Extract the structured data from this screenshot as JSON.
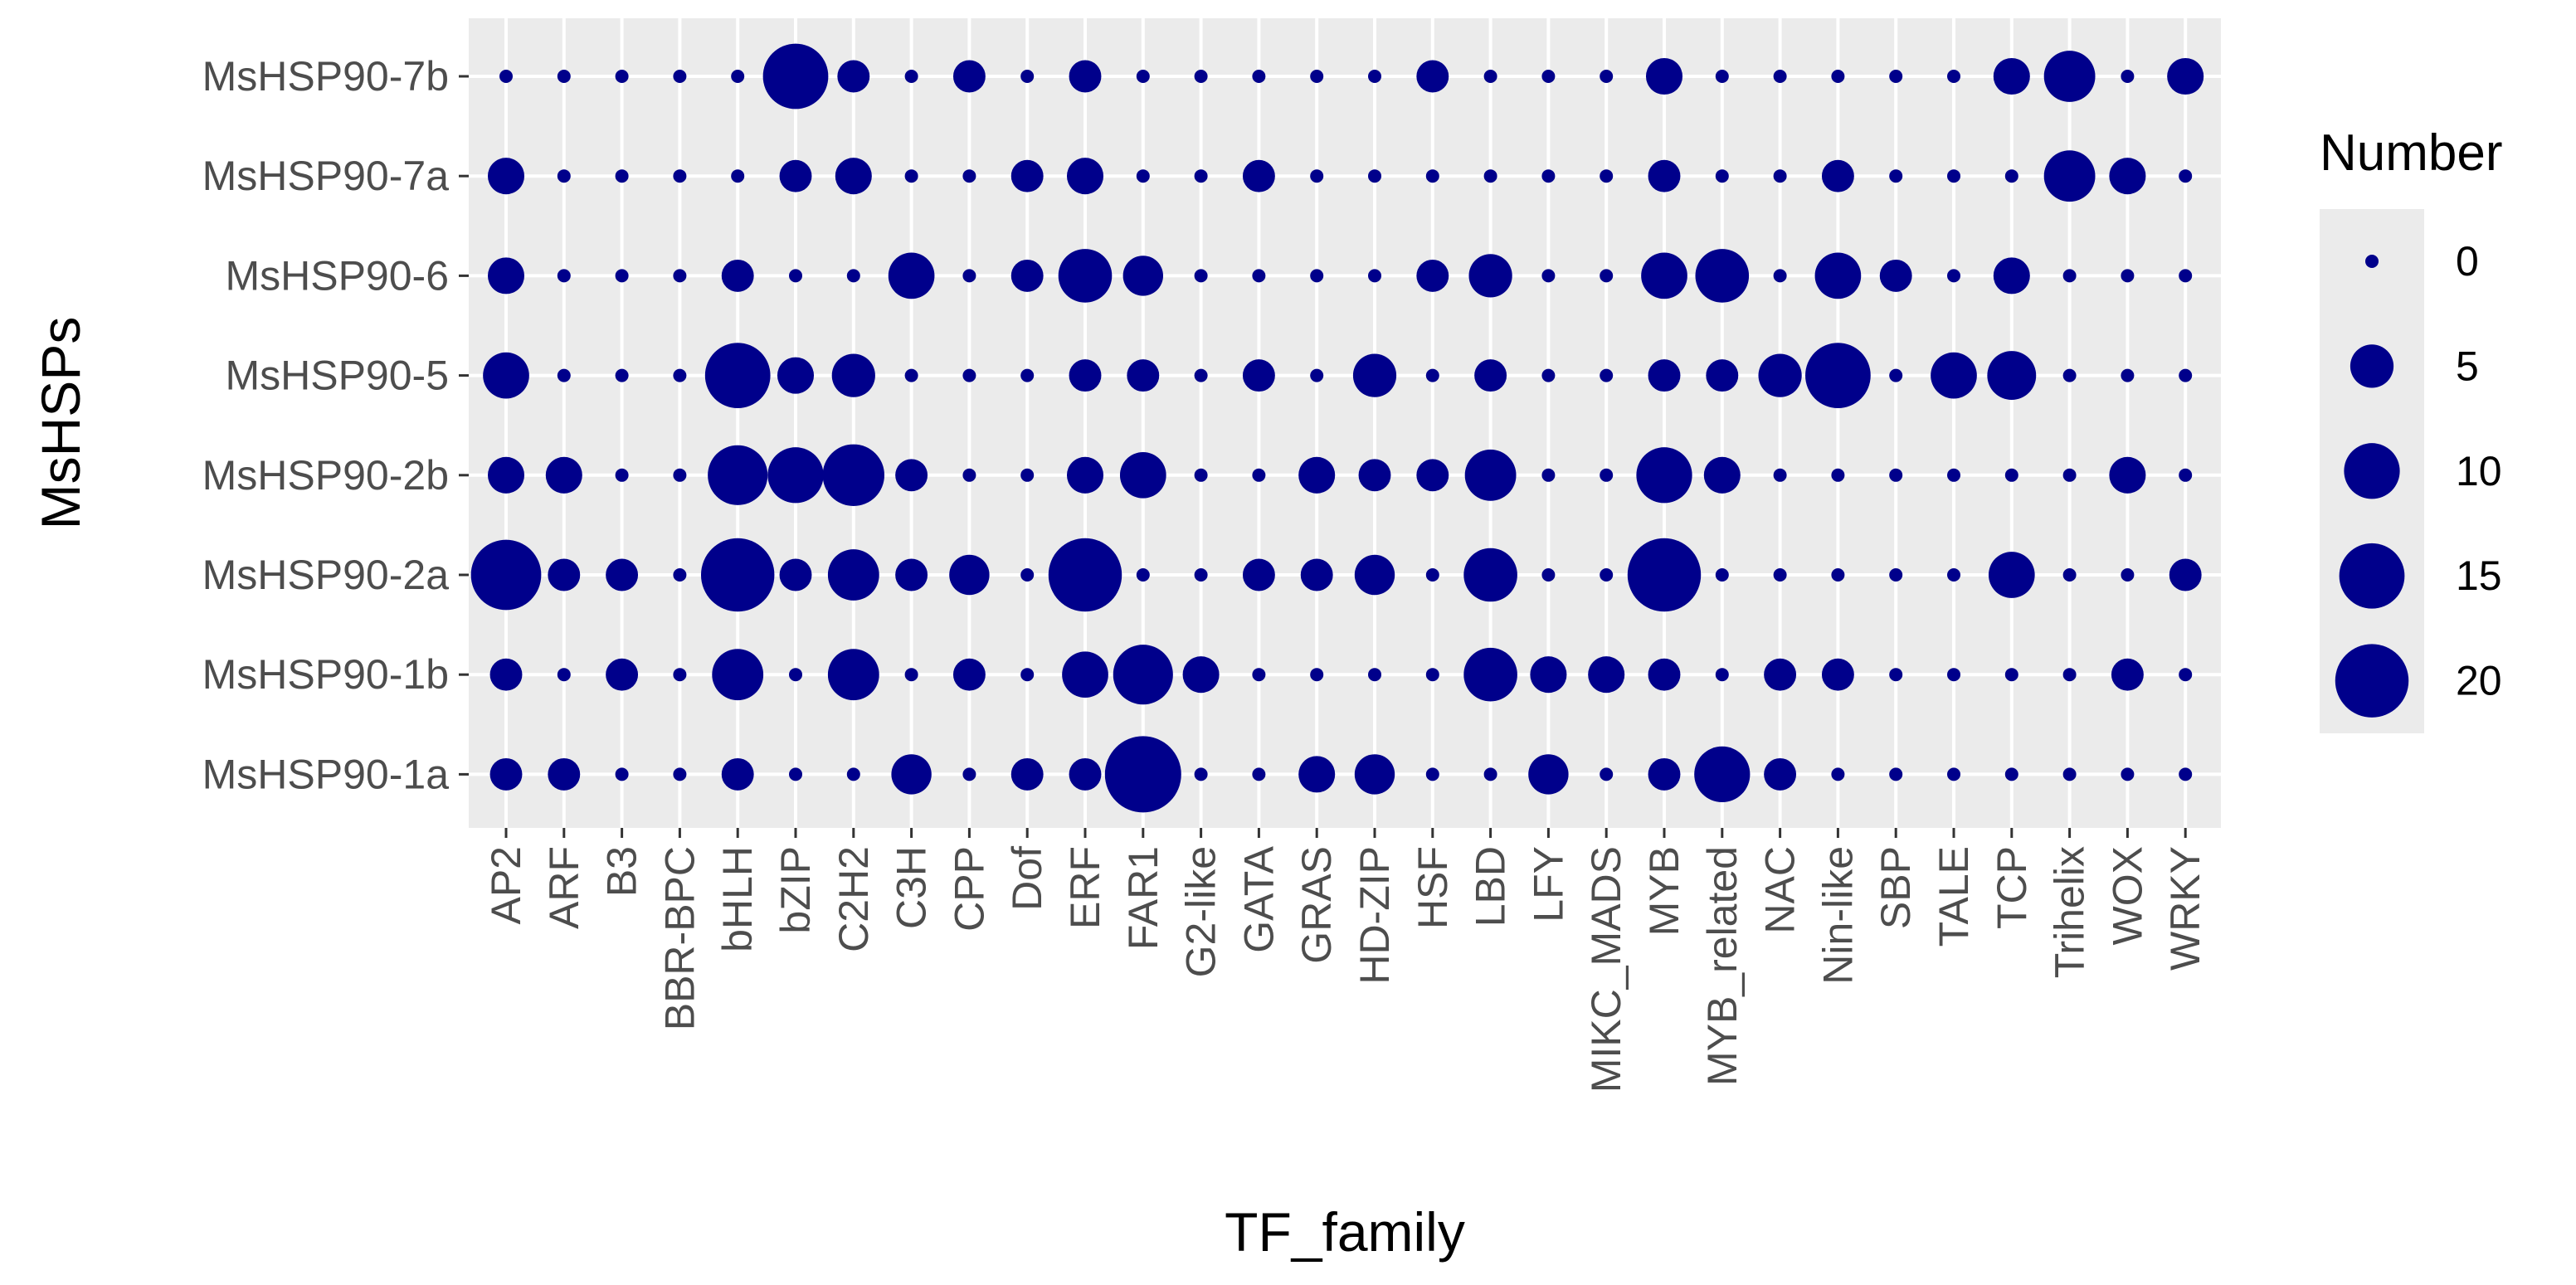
{
  "chart_data": {
    "type": "scatter",
    "subtype": "bubble",
    "xlabel": "TF_family",
    "ylabel": "MsHSPs",
    "x_categories": [
      "AP2",
      "ARF",
      "B3",
      "BBR-BPC",
      "bHLH",
      "bZIP",
      "C2H2",
      "C3H",
      "CPP",
      "Dof",
      "ERF",
      "FAR1",
      "G2-like",
      "GATA",
      "GRAS",
      "HD-ZIP",
      "HSF",
      "LBD",
      "LFY",
      "MIKC_MADS",
      "MYB",
      "MYB_related",
      "NAC",
      "Nin-like",
      "SBP",
      "TALE",
      "TCP",
      "Trihelix",
      "WOX",
      "WRKY"
    ],
    "y_categories": [
      "MsHSP90-1a",
      "MsHSP90-1b",
      "MsHSP90-2a",
      "MsHSP90-2b",
      "MsHSP90-5",
      "MsHSP90-6",
      "MsHSP90-7a",
      "MsHSP90-7b"
    ],
    "series": [
      {
        "name": "MsHSP90-7b",
        "values": [
          0,
          0,
          0,
          0,
          0,
          15,
          2,
          0,
          2,
          0,
          2,
          0,
          0,
          0,
          0,
          0,
          2,
          0,
          0,
          0,
          3,
          0,
          0,
          0,
          0,
          0,
          3,
          8,
          0,
          3
        ]
      },
      {
        "name": "MsHSP90-7a",
        "values": [
          3,
          0,
          0,
          0,
          0,
          2,
          3,
          0,
          0,
          2,
          3,
          0,
          0,
          2,
          0,
          0,
          0,
          0,
          0,
          0,
          2,
          0,
          0,
          2,
          0,
          0,
          0,
          8,
          3,
          0
        ]
      },
      {
        "name": "MsHSP90-6",
        "values": [
          3,
          0,
          0,
          0,
          2,
          0,
          0,
          6,
          0,
          2,
          9,
          4,
          0,
          0,
          0,
          0,
          2,
          5,
          0,
          0,
          6,
          9,
          0,
          6,
          2,
          0,
          3,
          0,
          0,
          0
        ]
      },
      {
        "name": "MsHSP90-5",
        "values": [
          6,
          0,
          0,
          0,
          15,
          3,
          5,
          0,
          0,
          0,
          2,
          2,
          0,
          2,
          0,
          5,
          0,
          2,
          0,
          0,
          2,
          2,
          5,
          15,
          0,
          6,
          7,
          0,
          0,
          0
        ]
      },
      {
        "name": "MsHSP90-2b",
        "values": [
          3,
          3,
          0,
          0,
          12,
          10,
          13,
          2,
          0,
          0,
          3,
          6,
          0,
          0,
          3,
          2,
          2,
          8,
          0,
          0,
          10,
          3,
          0,
          0,
          0,
          0,
          0,
          0,
          3,
          0
        ]
      },
      {
        "name": "MsHSP90-2a",
        "values": [
          18,
          2,
          2,
          0,
          20,
          2,
          8,
          2,
          4,
          0,
          20,
          0,
          0,
          2,
          2,
          4,
          0,
          9,
          0,
          0,
          20,
          0,
          0,
          0,
          0,
          0,
          6,
          0,
          0,
          2
        ]
      },
      {
        "name": "MsHSP90-1b",
        "values": [
          2,
          0,
          2,
          0,
          8,
          0,
          8,
          0,
          2,
          0,
          6,
          12,
          3,
          0,
          0,
          0,
          0,
          9,
          3,
          3,
          2,
          0,
          2,
          2,
          0,
          0,
          0,
          0,
          2,
          0
        ]
      },
      {
        "name": "MsHSP90-1a",
        "values": [
          2,
          2,
          0,
          0,
          2,
          0,
          0,
          4,
          0,
          2,
          2,
          22,
          0,
          0,
          3,
          4,
          0,
          0,
          4,
          0,
          2,
          10,
          2,
          0,
          0,
          0,
          0,
          0,
          0,
          0
        ]
      }
    ],
    "size_legend": {
      "title": "Number",
      "values": [
        0,
        5,
        10,
        15,
        20
      ],
      "labels": [
        "0",
        "5",
        "10",
        "15",
        "20"
      ]
    },
    "size_range": [
      0,
      22
    ],
    "point_color": "#00008b",
    "panel_background": "#ebebeb",
    "grid_color": "#ffffff",
    "grid": true,
    "legend_position": "right"
  }
}
